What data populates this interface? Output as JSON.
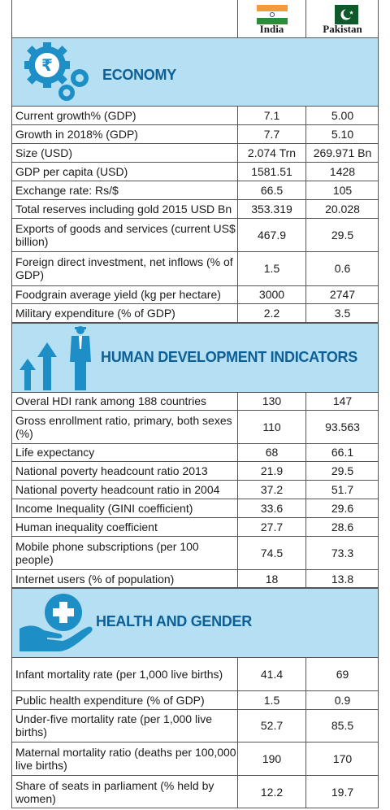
{
  "columns": {
    "india": "India",
    "pakistan": "Pakistan"
  },
  "sections": [
    {
      "title": "ECONOMY",
      "icon": "rupee-gear-icon",
      "rows": [
        {
          "label": "Current growth% (GDP)",
          "india": "7.1",
          "pakistan": "5.00"
        },
        {
          "label": "Growth in 2018%  (GDP)",
          "india": "7.7",
          "pakistan": "5.10"
        },
        {
          "label": "Size (USD)",
          "india": "2.074 Trn",
          "pakistan": "269.971 Bn"
        },
        {
          "label": "GDP per capita (USD)",
          "india": "1581.51",
          "pakistan": "1428"
        },
        {
          "label": "Exchange rate: Rs/$",
          "india": "66.5",
          "pakistan": "105"
        },
        {
          "label": "Total reserves including gold 2015 USD Bn",
          "india": "353.319",
          "pakistan": "20.028"
        },
        {
          "label": "Exports of goods and services (current US$ billion)",
          "india": "467.9",
          "pakistan": "29.5"
        },
        {
          "label": "Foreign direct investment, net inflows (% of GDP)",
          "india": "1.5",
          "pakistan": "0.6"
        },
        {
          "label": "Foodgrain average yield (kg per hectare)",
          "india": "3000",
          "pakistan": "2747"
        },
        {
          "label": "Military expenditure (% of GDP)",
          "india": "2.2",
          "pakistan": "3.5"
        }
      ]
    },
    {
      "title": "HUMAN DEVELOPMENT INDICATORS",
      "icon": "growth-arrows-person-icon",
      "rows": [
        {
          "label": "Overal HDI rank among 188 countries",
          "india": "130",
          "pakistan": "147"
        },
        {
          "label": "Gross enrollment ratio, primary, both sexes (%)",
          "india": "110",
          "pakistan": "93.563"
        },
        {
          "label": "Life expectancy",
          "india": "68",
          "pakistan": "66.1"
        },
        {
          "label": "National poverty headcount ratio 2013",
          "india": "21.9",
          "pakistan": "29.5"
        },
        {
          "label": "National poverty headcount ratio in 2004",
          "india": "37.2",
          "pakistan": "51.7"
        },
        {
          "label": "Income Inequality (GINI coefficient)",
          "india": "33.6",
          "pakistan": "29.6"
        },
        {
          "label": "Human inequality coefficient",
          "india": "27.7",
          "pakistan": "28.6"
        },
        {
          "label": "Mobile phone subscriptions (per 100 people)",
          "india": "74.5",
          "pakistan": "73.3"
        },
        {
          "label": "Internet users (% of population)",
          "india": "18",
          "pakistan": "13.8"
        }
      ]
    },
    {
      "title": "HEALTH AND GENDER",
      "icon": "hand-medical-cross-icon",
      "rows": [
        {
          "label": "Infant mortality rate (per 1,000 live births)",
          "india": "41.4",
          "pakistan": "69"
        },
        {
          "label": "Public health expenditure (% of GDP)",
          "india": "1.5",
          "pakistan": "0.9"
        },
        {
          "label": "Under-five mortality rate (per 1,000 live births)",
          "india": "52.7",
          "pakistan": "85.5"
        },
        {
          "label": "Maternal mortality ratio (deaths per 100,000 live births)",
          "india": "190",
          "pakistan": "170"
        },
        {
          "label": "Share of seats in parliament (% held by women)",
          "india": "12.2",
          "pakistan": "19.7"
        }
      ]
    }
  ],
  "colors": {
    "band": "#b5dff2",
    "title": "#0d5f95",
    "icon": "#1d8fc6"
  }
}
